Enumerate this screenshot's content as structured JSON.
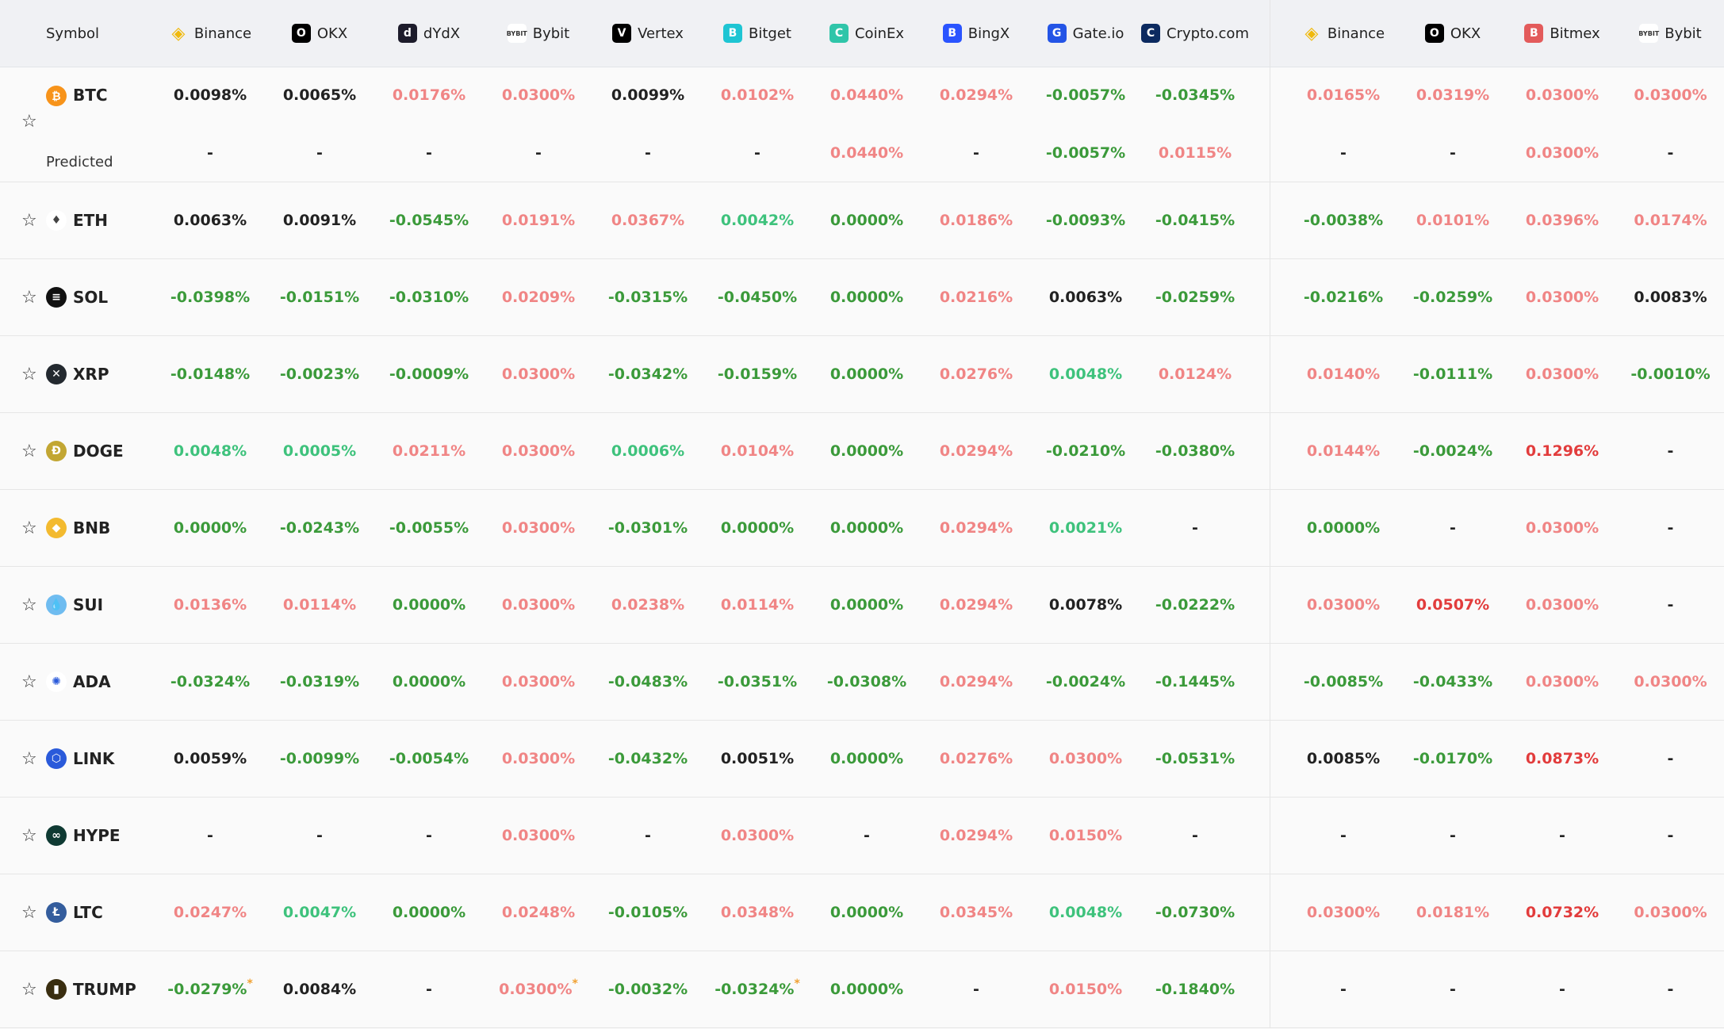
{
  "header": {
    "symbol": "Symbol",
    "exchanges": [
      {
        "name": "Binance",
        "icon": "binance-icon",
        "color": "#f0b90b"
      },
      {
        "name": "OKX",
        "icon": "okx-icon",
        "color": "#000000"
      },
      {
        "name": "dYdX",
        "icon": "dydx-icon",
        "color": "#1d1c2b"
      },
      {
        "name": "Bybit",
        "icon": "bybit-icon",
        "color": "#ffffff"
      },
      {
        "name": "Vertex",
        "icon": "vertex-icon",
        "color": "#000000"
      },
      {
        "name": "Bitget",
        "icon": "bitget-icon",
        "color": "#1ec5d3"
      },
      {
        "name": "CoinEx",
        "icon": "coinex-icon",
        "color": "#2fc5a9"
      },
      {
        "name": "BingX",
        "icon": "bingx-icon",
        "color": "#2a54ff"
      },
      {
        "name": "Gate.io",
        "icon": "gateio-icon",
        "color": "#2354e6"
      },
      {
        "name": "Crypto.com",
        "icon": "cryptocom-icon",
        "color": "#0c2a60"
      },
      {
        "name": "Binance",
        "icon": "binance-icon",
        "color": "#f0b90b"
      },
      {
        "name": "OKX",
        "icon": "okx-icon",
        "color": "#000000"
      },
      {
        "name": "Bitmex",
        "icon": "bitmex-icon",
        "color": "#e35b5b"
      },
      {
        "name": "Bybit",
        "icon": "bybit-icon",
        "color": "#ffffff"
      }
    ]
  },
  "colors": {
    "negative": "#3b9a3a",
    "small_positive": "#3ec27c",
    "positive": "#f08585",
    "high_positive": "#e23c3c",
    "neutral": "#222222",
    "predicted_marker": "#f0a030"
  },
  "predicted_label": "Predicted",
  "rows": [
    {
      "symbol": "BTC",
      "coin_color": "#f7931a",
      "glyph": "₿",
      "values": [
        [
          "0.0098%",
          "k"
        ],
        [
          "0.0065%",
          "k"
        ],
        [
          "0.0176%",
          "r"
        ],
        [
          "0.0300%",
          "r"
        ],
        [
          "0.0099%",
          "k"
        ],
        [
          "0.0102%",
          "r"
        ],
        [
          "0.0440%",
          "r"
        ],
        [
          "0.0294%",
          "r"
        ],
        [
          "-0.0057%",
          "g"
        ],
        [
          "-0.0345%",
          "g"
        ],
        [
          "0.0165%",
          "r"
        ],
        [
          "0.0319%",
          "r"
        ],
        [
          "0.0300%",
          "r"
        ],
        [
          "0.0300%",
          "r"
        ]
      ],
      "predicted": [
        [
          "-",
          "k"
        ],
        [
          "-",
          "k"
        ],
        [
          "-",
          "k"
        ],
        [
          "-",
          "k"
        ],
        [
          "-",
          "k"
        ],
        [
          "-",
          "k"
        ],
        [
          "0.0440%",
          "r"
        ],
        [
          "-",
          "k"
        ],
        [
          "-0.0057%",
          "g"
        ],
        [
          "0.0115%",
          "r"
        ],
        [
          "-",
          "k"
        ],
        [
          "-",
          "k"
        ],
        [
          "0.0300%",
          "r"
        ],
        [
          "-",
          "k"
        ]
      ]
    },
    {
      "symbol": "ETH",
      "coin_color": "#ffffff",
      "glyph": "♦",
      "values": [
        [
          "0.0063%",
          "k"
        ],
        [
          "0.0091%",
          "k"
        ],
        [
          "-0.0545%",
          "g"
        ],
        [
          "0.0191%",
          "r"
        ],
        [
          "0.0367%",
          "r"
        ],
        [
          "0.0042%",
          "lg"
        ],
        [
          "0.0000%",
          "g"
        ],
        [
          "0.0186%",
          "r"
        ],
        [
          "-0.0093%",
          "g"
        ],
        [
          "-0.0415%",
          "g"
        ],
        [
          "-0.0038%",
          "g"
        ],
        [
          "0.0101%",
          "r"
        ],
        [
          "0.0396%",
          "r"
        ],
        [
          "0.0174%",
          "r"
        ]
      ]
    },
    {
      "symbol": "SOL",
      "coin_color": "#111111",
      "glyph": "≡",
      "values": [
        [
          "-0.0398%",
          "g"
        ],
        [
          "-0.0151%",
          "g"
        ],
        [
          "-0.0310%",
          "g"
        ],
        [
          "0.0209%",
          "r"
        ],
        [
          "-0.0315%",
          "g"
        ],
        [
          "-0.0450%",
          "g"
        ],
        [
          "0.0000%",
          "g"
        ],
        [
          "0.0216%",
          "r"
        ],
        [
          "0.0063%",
          "k"
        ],
        [
          "-0.0259%",
          "g"
        ],
        [
          "-0.0216%",
          "g"
        ],
        [
          "-0.0259%",
          "g"
        ],
        [
          "0.0300%",
          "r"
        ],
        [
          "0.0083%",
          "k"
        ]
      ]
    },
    {
      "symbol": "XRP",
      "coin_color": "#23292f",
      "glyph": "✕",
      "values": [
        [
          "-0.0148%",
          "g"
        ],
        [
          "-0.0023%",
          "g"
        ],
        [
          "-0.0009%",
          "g"
        ],
        [
          "0.0300%",
          "r"
        ],
        [
          "-0.0342%",
          "g"
        ],
        [
          "-0.0159%",
          "g"
        ],
        [
          "0.0000%",
          "g"
        ],
        [
          "0.0276%",
          "r"
        ],
        [
          "0.0048%",
          "lg"
        ],
        [
          "0.0124%",
          "r"
        ],
        [
          "0.0140%",
          "r"
        ],
        [
          "-0.0111%",
          "g"
        ],
        [
          "0.0300%",
          "r"
        ],
        [
          "-0.0010%",
          "g"
        ]
      ]
    },
    {
      "symbol": "DOGE",
      "coin_color": "#c2a633",
      "glyph": "Ð",
      "values": [
        [
          "0.0048%",
          "lg"
        ],
        [
          "0.0005%",
          "lg"
        ],
        [
          "0.0211%",
          "r"
        ],
        [
          "0.0300%",
          "r"
        ],
        [
          "0.0006%",
          "lg"
        ],
        [
          "0.0104%",
          "r"
        ],
        [
          "0.0000%",
          "g"
        ],
        [
          "0.0294%",
          "r"
        ],
        [
          "-0.0210%",
          "g"
        ],
        [
          "-0.0380%",
          "g"
        ],
        [
          "0.0144%",
          "r"
        ],
        [
          "-0.0024%",
          "g"
        ],
        [
          "0.1296%",
          "R"
        ],
        [
          "-",
          "k"
        ]
      ]
    },
    {
      "symbol": "BNB",
      "coin_color": "#f3ba2f",
      "glyph": "◆",
      "values": [
        [
          "0.0000%",
          "g"
        ],
        [
          "-0.0243%",
          "g"
        ],
        [
          "-0.0055%",
          "g"
        ],
        [
          "0.0300%",
          "r"
        ],
        [
          "-0.0301%",
          "g"
        ],
        [
          "0.0000%",
          "g"
        ],
        [
          "0.0000%",
          "g"
        ],
        [
          "0.0294%",
          "r"
        ],
        [
          "0.0021%",
          "lg"
        ],
        [
          "-",
          "k"
        ],
        [
          "0.0000%",
          "g"
        ],
        [
          "-",
          "k"
        ],
        [
          "0.0300%",
          "r"
        ],
        [
          "-",
          "k"
        ]
      ]
    },
    {
      "symbol": "SUI",
      "coin_color": "#6fbcf0",
      "glyph": "💧",
      "values": [
        [
          "0.0136%",
          "r"
        ],
        [
          "0.0114%",
          "r"
        ],
        [
          "0.0000%",
          "g"
        ],
        [
          "0.0300%",
          "r"
        ],
        [
          "0.0238%",
          "r"
        ],
        [
          "0.0114%",
          "r"
        ],
        [
          "0.0000%",
          "g"
        ],
        [
          "0.0294%",
          "r"
        ],
        [
          "0.0078%",
          "k"
        ],
        [
          "-0.0222%",
          "g"
        ],
        [
          "0.0300%",
          "r"
        ],
        [
          "0.0507%",
          "R"
        ],
        [
          "0.0300%",
          "r"
        ],
        [
          "-",
          "k"
        ]
      ]
    },
    {
      "symbol": "ADA",
      "coin_color": "#ffffff",
      "glyph": "✺",
      "values": [
        [
          "-0.0324%",
          "g"
        ],
        [
          "-0.0319%",
          "g"
        ],
        [
          "0.0000%",
          "g"
        ],
        [
          "0.0300%",
          "r"
        ],
        [
          "-0.0483%",
          "g"
        ],
        [
          "-0.0351%",
          "g"
        ],
        [
          "-0.0308%",
          "g"
        ],
        [
          "0.0294%",
          "r"
        ],
        [
          "-0.0024%",
          "g"
        ],
        [
          "-0.1445%",
          "g"
        ],
        [
          "-0.0085%",
          "g"
        ],
        [
          "-0.0433%",
          "g"
        ],
        [
          "0.0300%",
          "r"
        ],
        [
          "0.0300%",
          "r"
        ]
      ]
    },
    {
      "symbol": "LINK",
      "coin_color": "#2a5ada",
      "glyph": "⬡",
      "values": [
        [
          "0.0059%",
          "k"
        ],
        [
          "-0.0099%",
          "g"
        ],
        [
          "-0.0054%",
          "g"
        ],
        [
          "0.0300%",
          "r"
        ],
        [
          "-0.0432%",
          "g"
        ],
        [
          "0.0051%",
          "k"
        ],
        [
          "0.0000%",
          "g"
        ],
        [
          "0.0276%",
          "r"
        ],
        [
          "0.0300%",
          "r"
        ],
        [
          "-0.0531%",
          "g"
        ],
        [
          "0.0085%",
          "k"
        ],
        [
          "-0.0170%",
          "g"
        ],
        [
          "0.0873%",
          "R"
        ],
        [
          "-",
          "k"
        ]
      ]
    },
    {
      "symbol": "HYPE",
      "coin_color": "#0f3a33",
      "glyph": "∞",
      "values": [
        [
          "-",
          "k"
        ],
        [
          "-",
          "k"
        ],
        [
          "-",
          "k"
        ],
        [
          "0.0300%",
          "r"
        ],
        [
          "-",
          "k"
        ],
        [
          "0.0300%",
          "r"
        ],
        [
          "-",
          "k"
        ],
        [
          "0.0294%",
          "r"
        ],
        [
          "0.0150%",
          "r"
        ],
        [
          "-",
          "k"
        ],
        [
          "-",
          "k"
        ],
        [
          "-",
          "k"
        ],
        [
          "-",
          "k"
        ],
        [
          "-",
          "k"
        ]
      ]
    },
    {
      "symbol": "LTC",
      "coin_color": "#345d9d",
      "glyph": "Ł",
      "values": [
        [
          "0.0247%",
          "r"
        ],
        [
          "0.0047%",
          "lg"
        ],
        [
          "0.0000%",
          "g"
        ],
        [
          "0.0248%",
          "r"
        ],
        [
          "-0.0105%",
          "g"
        ],
        [
          "0.0348%",
          "r"
        ],
        [
          "0.0000%",
          "g"
        ],
        [
          "0.0345%",
          "r"
        ],
        [
          "0.0048%",
          "lg"
        ],
        [
          "-0.0730%",
          "g"
        ],
        [
          "0.0300%",
          "r"
        ],
        [
          "0.0181%",
          "r"
        ],
        [
          "0.0732%",
          "R"
        ],
        [
          "0.0300%",
          "r"
        ]
      ]
    },
    {
      "symbol": "TRUMP",
      "coin_color": "#3a2e10",
      "glyph": "▮",
      "values": [
        [
          "-0.0279%",
          "g",
          "*"
        ],
        [
          "0.0084%",
          "k"
        ],
        [
          "-",
          "k"
        ],
        [
          "0.0300%",
          "r",
          "*"
        ],
        [
          "-0.0032%",
          "g"
        ],
        [
          "-0.0324%",
          "g",
          "*"
        ],
        [
          "0.0000%",
          "g"
        ],
        [
          "-",
          "k"
        ],
        [
          "0.0150%",
          "r"
        ],
        [
          "-0.1840%",
          "g"
        ],
        [
          "-",
          "k"
        ],
        [
          "-",
          "k"
        ],
        [
          "-",
          "k"
        ],
        [
          "-",
          "k"
        ]
      ]
    }
  ]
}
